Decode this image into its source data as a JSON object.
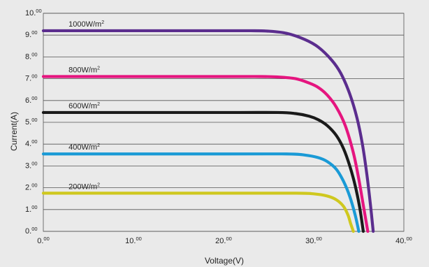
{
  "chart_data": {
    "type": "line",
    "xlabel": "Voltage(V)",
    "ylabel": "Current(A)",
    "xlim": [
      0,
      40
    ],
    "ylim": [
      0,
      10
    ],
    "x_ticks": [
      {
        "main": "0.",
        "sup": "00"
      },
      {
        "main": "10.",
        "sup": "00"
      },
      {
        "main": "20.",
        "sup": "00"
      },
      {
        "main": "30.",
        "sup": "00"
      },
      {
        "main": "40.",
        "sup": "00"
      }
    ],
    "y_ticks": [
      {
        "main": "0.",
        "sup": "00"
      },
      {
        "main": "1.",
        "sup": "00"
      },
      {
        "main": "2.",
        "sup": "00"
      },
      {
        "main": "3.",
        "sup": "00"
      },
      {
        "main": "4.",
        "sup": "00"
      },
      {
        "main": "5.",
        "sup": "00"
      },
      {
        "main": "6.",
        "sup": "00"
      },
      {
        "main": "7.",
        "sup": "00"
      },
      {
        "main": "8.",
        "sup": "00"
      },
      {
        "main": "9.",
        "sup": "00"
      },
      {
        "main": "10.",
        "sup": "00"
      }
    ],
    "grid": "horizontal",
    "series": [
      {
        "name": "1000W/m",
        "name_sup": "2",
        "color": "#5b2d8e",
        "x": [
          0,
          20,
          23,
          25,
          27,
          29,
          30.5,
          32,
          33,
          34,
          34.8,
          35.4,
          35.9,
          36.3,
          36.6
        ],
        "y": [
          9.2,
          9.2,
          9.2,
          9.18,
          9.08,
          8.8,
          8.45,
          7.85,
          7.25,
          6.3,
          5.2,
          4.0,
          2.6,
          1.2,
          0
        ]
      },
      {
        "name": "800W/m",
        "name_sup": "2",
        "color": "#e5157f",
        "x": [
          0,
          20,
          24,
          26,
          28,
          29.5,
          30.5,
          31.5,
          32.5,
          33.5,
          34.4,
          35.0,
          35.5,
          36.0
        ],
        "y": [
          7.1,
          7.1,
          7.1,
          7.08,
          7.0,
          6.8,
          6.6,
          6.25,
          5.7,
          4.85,
          3.6,
          2.4,
          1.2,
          0
        ]
      },
      {
        "name": "600W/m",
        "name_sup": "2",
        "color": "#1a1a1a",
        "x": [
          0,
          20,
          26,
          28,
          29.5,
          30.5,
          31.5,
          32.5,
          33.3,
          34.0,
          34.6,
          35.1,
          35.5
        ],
        "y": [
          5.45,
          5.45,
          5.45,
          5.4,
          5.28,
          5.12,
          4.85,
          4.4,
          3.8,
          3.0,
          2.1,
          1.1,
          0
        ]
      },
      {
        "name": "400W/m",
        "name_sup": "2",
        "color": "#1a9ad6",
        "x": [
          0,
          20,
          27,
          29,
          30.5,
          31.5,
          32.5,
          33.3,
          34.0,
          34.6,
          35.0
        ],
        "y": [
          3.55,
          3.55,
          3.55,
          3.5,
          3.38,
          3.2,
          2.85,
          2.3,
          1.6,
          0.75,
          0
        ]
      },
      {
        "name": "200W/m",
        "name_sup": "2",
        "color": "#cfc81f",
        "x": [
          0,
          20,
          28,
          30,
          31.5,
          32.5,
          33.3,
          33.8,
          34.1,
          34.4
        ],
        "y": [
          1.75,
          1.75,
          1.75,
          1.72,
          1.62,
          1.45,
          1.15,
          0.75,
          0.35,
          0
        ]
      }
    ]
  }
}
